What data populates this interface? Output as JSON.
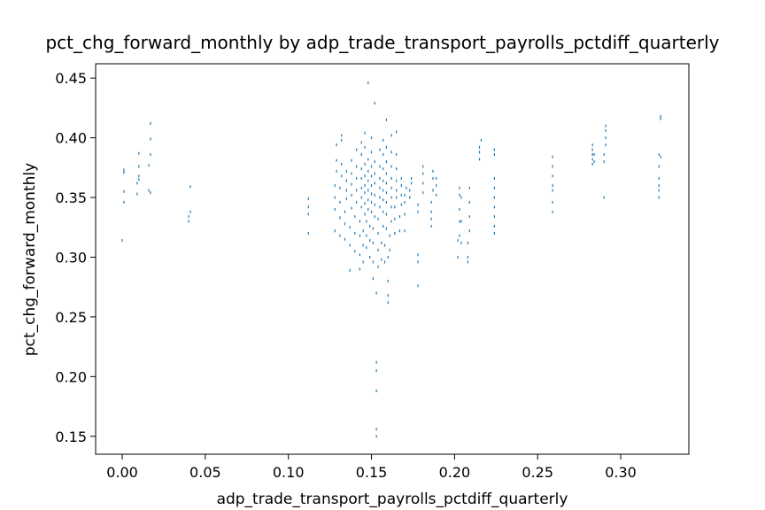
{
  "chart_data": {
    "type": "scatter",
    "title": "pct_chg_forward_monthly by adp_trade_transport_payrolls_pctdiff_quarterly",
    "xlabel": "adp_trade_transport_payrolls_pctdiff_quarterly",
    "ylabel": "pct_chg_forward_monthly",
    "xlim": [
      -0.016,
      0.341
    ],
    "ylim": [
      0.135,
      0.462
    ],
    "xticks": [
      0.0,
      0.05,
      0.1,
      0.15,
      0.2,
      0.25,
      0.3
    ],
    "xtick_labels": [
      "0.00",
      "0.05",
      "0.10",
      "0.15",
      "0.20",
      "0.25",
      "0.30"
    ],
    "yticks": [
      0.15,
      0.2,
      0.25,
      0.3,
      0.35,
      0.4,
      0.45
    ],
    "ytick_labels": [
      "0.15",
      "0.20",
      "0.25",
      "0.30",
      "0.35",
      "0.40",
      "0.45"
    ],
    "grid": false,
    "marker_color": "#1f77b4",
    "series": [
      {
        "points": [
          [
            0.0,
            0.314
          ],
          [
            0.001,
            0.346
          ],
          [
            0.001,
            0.355
          ],
          [
            0.001,
            0.371
          ],
          [
            0.001,
            0.373
          ],
          [
            0.009,
            0.353
          ],
          [
            0.009,
            0.362
          ],
          [
            0.01,
            0.365
          ],
          [
            0.01,
            0.368
          ],
          [
            0.01,
            0.376
          ],
          [
            0.01,
            0.387
          ],
          [
            0.016,
            0.356
          ],
          [
            0.016,
            0.377
          ],
          [
            0.017,
            0.386
          ],
          [
            0.017,
            0.399
          ],
          [
            0.017,
            0.412
          ],
          [
            0.017,
            0.354
          ],
          [
            0.04,
            0.33
          ],
          [
            0.04,
            0.334
          ],
          [
            0.041,
            0.338
          ],
          [
            0.041,
            0.359
          ],
          [
            0.112,
            0.32
          ],
          [
            0.112,
            0.336
          ],
          [
            0.112,
            0.342
          ],
          [
            0.112,
            0.349
          ],
          [
            0.128,
            0.322
          ],
          [
            0.128,
            0.34
          ],
          [
            0.128,
            0.35
          ],
          [
            0.128,
            0.36
          ],
          [
            0.129,
            0.372
          ],
          [
            0.129,
            0.381
          ],
          [
            0.129,
            0.394
          ],
          [
            0.131,
            0.318
          ],
          [
            0.131,
            0.333
          ],
          [
            0.131,
            0.346
          ],
          [
            0.131,
            0.358
          ],
          [
            0.132,
            0.368
          ],
          [
            0.132,
            0.378
          ],
          [
            0.132,
            0.398
          ],
          [
            0.132,
            0.402
          ],
          [
            0.134,
            0.315
          ],
          [
            0.134,
            0.328
          ],
          [
            0.134,
            0.338
          ],
          [
            0.135,
            0.349
          ],
          [
            0.135,
            0.356
          ],
          [
            0.135,
            0.364
          ],
          [
            0.135,
            0.372
          ],
          [
            0.137,
            0.289
          ],
          [
            0.137,
            0.31
          ],
          [
            0.137,
            0.325
          ],
          [
            0.138,
            0.341
          ],
          [
            0.138,
            0.352
          ],
          [
            0.138,
            0.361
          ],
          [
            0.138,
            0.37
          ],
          [
            0.138,
            0.381
          ],
          [
            0.14,
            0.305
          ],
          [
            0.14,
            0.32
          ],
          [
            0.14,
            0.334
          ],
          [
            0.141,
            0.346
          ],
          [
            0.141,
            0.356
          ],
          [
            0.141,
            0.366
          ],
          [
            0.141,
            0.376
          ],
          [
            0.141,
            0.39
          ],
          [
            0.143,
            0.29
          ],
          [
            0.143,
            0.302
          ],
          [
            0.143,
            0.318
          ],
          [
            0.143,
            0.33
          ],
          [
            0.144,
            0.342
          ],
          [
            0.144,
            0.35
          ],
          [
            0.144,
            0.358
          ],
          [
            0.144,
            0.366
          ],
          [
            0.144,
            0.374
          ],
          [
            0.144,
            0.386
          ],
          [
            0.144,
            0.396
          ],
          [
            0.145,
            0.296
          ],
          [
            0.145,
            0.31
          ],
          [
            0.145,
            0.322
          ],
          [
            0.146,
            0.336
          ],
          [
            0.146,
            0.345
          ],
          [
            0.146,
            0.354
          ],
          [
            0.146,
            0.36
          ],
          [
            0.146,
            0.368
          ],
          [
            0.146,
            0.378
          ],
          [
            0.146,
            0.392
          ],
          [
            0.146,
            0.404
          ],
          [
            0.147,
            0.308
          ],
          [
            0.147,
            0.318
          ],
          [
            0.147,
            0.33
          ],
          [
            0.148,
            0.34
          ],
          [
            0.148,
            0.348
          ],
          [
            0.148,
            0.356
          ],
          [
            0.148,
            0.364
          ],
          [
            0.148,
            0.372
          ],
          [
            0.148,
            0.382
          ],
          [
            0.148,
            0.446
          ],
          [
            0.149,
            0.3
          ],
          [
            0.149,
            0.314
          ],
          [
            0.149,
            0.326
          ],
          [
            0.15,
            0.338
          ],
          [
            0.15,
            0.346
          ],
          [
            0.15,
            0.353
          ],
          [
            0.15,
            0.36
          ],
          [
            0.15,
            0.368
          ],
          [
            0.15,
            0.376
          ],
          [
            0.15,
            0.388
          ],
          [
            0.15,
            0.4
          ],
          [
            0.151,
            0.282
          ],
          [
            0.151,
            0.296
          ],
          [
            0.151,
            0.312
          ],
          [
            0.151,
            0.324
          ],
          [
            0.152,
            0.334
          ],
          [
            0.152,
            0.344
          ],
          [
            0.152,
            0.352
          ],
          [
            0.152,
            0.362
          ],
          [
            0.152,
            0.37
          ],
          [
            0.152,
            0.38
          ],
          [
            0.152,
            0.429
          ],
          [
            0.153,
            0.27
          ],
          [
            0.153,
            0.212
          ],
          [
            0.153,
            0.205
          ],
          [
            0.153,
            0.188
          ],
          [
            0.153,
            0.156
          ],
          [
            0.153,
            0.15
          ],
          [
            0.154,
            0.292
          ],
          [
            0.154,
            0.306
          ],
          [
            0.154,
            0.32
          ],
          [
            0.154,
            0.332
          ],
          [
            0.155,
            0.342
          ],
          [
            0.155,
            0.35
          ],
          [
            0.155,
            0.358
          ],
          [
            0.155,
            0.366
          ],
          [
            0.155,
            0.376
          ],
          [
            0.155,
            0.39
          ],
          [
            0.156,
            0.298
          ],
          [
            0.156,
            0.312
          ],
          [
            0.157,
            0.326
          ],
          [
            0.157,
            0.338
          ],
          [
            0.157,
            0.348
          ],
          [
            0.157,
            0.356
          ],
          [
            0.157,
            0.364
          ],
          [
            0.157,
            0.374
          ],
          [
            0.157,
            0.386
          ],
          [
            0.157,
            0.398
          ],
          [
            0.158,
            0.296
          ],
          [
            0.158,
            0.31
          ],
          [
            0.159,
            0.324
          ],
          [
            0.159,
            0.336
          ],
          [
            0.159,
            0.346
          ],
          [
            0.159,
            0.354
          ],
          [
            0.159,
            0.362
          ],
          [
            0.159,
            0.37
          ],
          [
            0.159,
            0.38
          ],
          [
            0.159,
            0.392
          ],
          [
            0.159,
            0.415
          ],
          [
            0.16,
            0.262
          ],
          [
            0.16,
            0.268
          ],
          [
            0.16,
            0.28
          ],
          [
            0.16,
            0.3
          ],
          [
            0.161,
            0.306
          ],
          [
            0.161,
            0.318
          ],
          [
            0.162,
            0.33
          ],
          [
            0.162,
            0.342
          ],
          [
            0.162,
            0.35
          ],
          [
            0.162,
            0.358
          ],
          [
            0.162,
            0.366
          ],
          [
            0.162,
            0.376
          ],
          [
            0.162,
            0.388
          ],
          [
            0.162,
            0.402
          ],
          [
            0.164,
            0.32
          ],
          [
            0.164,
            0.332
          ],
          [
            0.164,
            0.342
          ],
          [
            0.165,
            0.35
          ],
          [
            0.165,
            0.356
          ],
          [
            0.165,
            0.364
          ],
          [
            0.165,
            0.374
          ],
          [
            0.165,
            0.386
          ],
          [
            0.165,
            0.405
          ],
          [
            0.167,
            0.322
          ],
          [
            0.167,
            0.334
          ],
          [
            0.168,
            0.344
          ],
          [
            0.168,
            0.352
          ],
          [
            0.168,
            0.36
          ],
          [
            0.168,
            0.366
          ],
          [
            0.17,
            0.322
          ],
          [
            0.17,
            0.336
          ],
          [
            0.17,
            0.346
          ],
          [
            0.17,
            0.352
          ],
          [
            0.171,
            0.358
          ],
          [
            0.173,
            0.35
          ],
          [
            0.173,
            0.356
          ],
          [
            0.174,
            0.362
          ],
          [
            0.174,
            0.366
          ],
          [
            0.178,
            0.276
          ],
          [
            0.178,
            0.296
          ],
          [
            0.178,
            0.302
          ],
          [
            0.178,
            0.338
          ],
          [
            0.178,
            0.344
          ],
          [
            0.181,
            0.354
          ],
          [
            0.181,
            0.362
          ],
          [
            0.181,
            0.37
          ],
          [
            0.181,
            0.376
          ],
          [
            0.186,
            0.326
          ],
          [
            0.186,
            0.332
          ],
          [
            0.186,
            0.338
          ],
          [
            0.186,
            0.346
          ],
          [
            0.187,
            0.356
          ],
          [
            0.187,
            0.366
          ],
          [
            0.187,
            0.372
          ],
          [
            0.189,
            0.352
          ],
          [
            0.189,
            0.36
          ],
          [
            0.189,
            0.366
          ],
          [
            0.202,
            0.3
          ],
          [
            0.202,
            0.314
          ],
          [
            0.203,
            0.318
          ],
          [
            0.203,
            0.33
          ],
          [
            0.203,
            0.34
          ],
          [
            0.203,
            0.352
          ],
          [
            0.203,
            0.358
          ],
          [
            0.204,
            0.312
          ],
          [
            0.204,
            0.33
          ],
          [
            0.204,
            0.35
          ],
          [
            0.208,
            0.296
          ],
          [
            0.208,
            0.3
          ],
          [
            0.208,
            0.312
          ],
          [
            0.209,
            0.322
          ],
          [
            0.209,
            0.334
          ],
          [
            0.209,
            0.346
          ],
          [
            0.209,
            0.358
          ],
          [
            0.215,
            0.382
          ],
          [
            0.215,
            0.388
          ],
          [
            0.215,
            0.392
          ],
          [
            0.216,
            0.398
          ],
          [
            0.224,
            0.32
          ],
          [
            0.224,
            0.326
          ],
          [
            0.224,
            0.334
          ],
          [
            0.224,
            0.342
          ],
          [
            0.224,
            0.35
          ],
          [
            0.224,
            0.358
          ],
          [
            0.224,
            0.366
          ],
          [
            0.224,
            0.386
          ],
          [
            0.224,
            0.39
          ],
          [
            0.259,
            0.338
          ],
          [
            0.259,
            0.346
          ],
          [
            0.259,
            0.356
          ],
          [
            0.259,
            0.36
          ],
          [
            0.259,
            0.368
          ],
          [
            0.259,
            0.376
          ],
          [
            0.259,
            0.384
          ],
          [
            0.283,
            0.378
          ],
          [
            0.283,
            0.382
          ],
          [
            0.283,
            0.386
          ],
          [
            0.283,
            0.39
          ],
          [
            0.283,
            0.394
          ],
          [
            0.284,
            0.38
          ],
          [
            0.284,
            0.386
          ],
          [
            0.29,
            0.35
          ],
          [
            0.29,
            0.38
          ],
          [
            0.29,
            0.386
          ],
          [
            0.291,
            0.394
          ],
          [
            0.291,
            0.4
          ],
          [
            0.291,
            0.406
          ],
          [
            0.291,
            0.41
          ],
          [
            0.323,
            0.35
          ],
          [
            0.323,
            0.356
          ],
          [
            0.323,
            0.36
          ],
          [
            0.323,
            0.366
          ],
          [
            0.323,
            0.376
          ],
          [
            0.323,
            0.386
          ],
          [
            0.324,
            0.416
          ],
          [
            0.324,
            0.418
          ],
          [
            0.324,
            0.384
          ]
        ]
      }
    ]
  }
}
